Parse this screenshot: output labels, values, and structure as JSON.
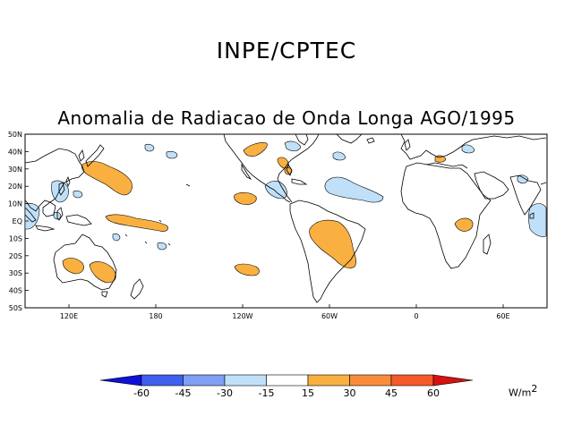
{
  "header": {
    "title": "INPE/CPTEC"
  },
  "map": {
    "title": "Anomalia de Radiacao de Onda Longa AGO/1995",
    "lat_labels": [
      "50N",
      "40N",
      "30N",
      "20N",
      "10N",
      "EQ",
      "10S",
      "20S",
      "30S",
      "40S",
      "50S"
    ],
    "lon_labels": [
      "120E",
      "180",
      "120W",
      "60W",
      "0",
      "60E"
    ],
    "colors": {
      "coast": "#000000",
      "positive": "#f9b040",
      "negative": "#bfe0f8"
    }
  },
  "legend": {
    "labels": [
      "-60",
      "-45",
      "-30",
      "-15",
      "15",
      "30",
      "45",
      "60"
    ],
    "colors": [
      "#1010d8",
      "#3f5ff0",
      "#7f9ff5",
      "#bfe0f8",
      "#ffffff",
      "#f9b040",
      "#f98c3a",
      "#f55a2a",
      "#d81010"
    ],
    "units_base": "W/m",
    "units_exp": "2"
  }
}
